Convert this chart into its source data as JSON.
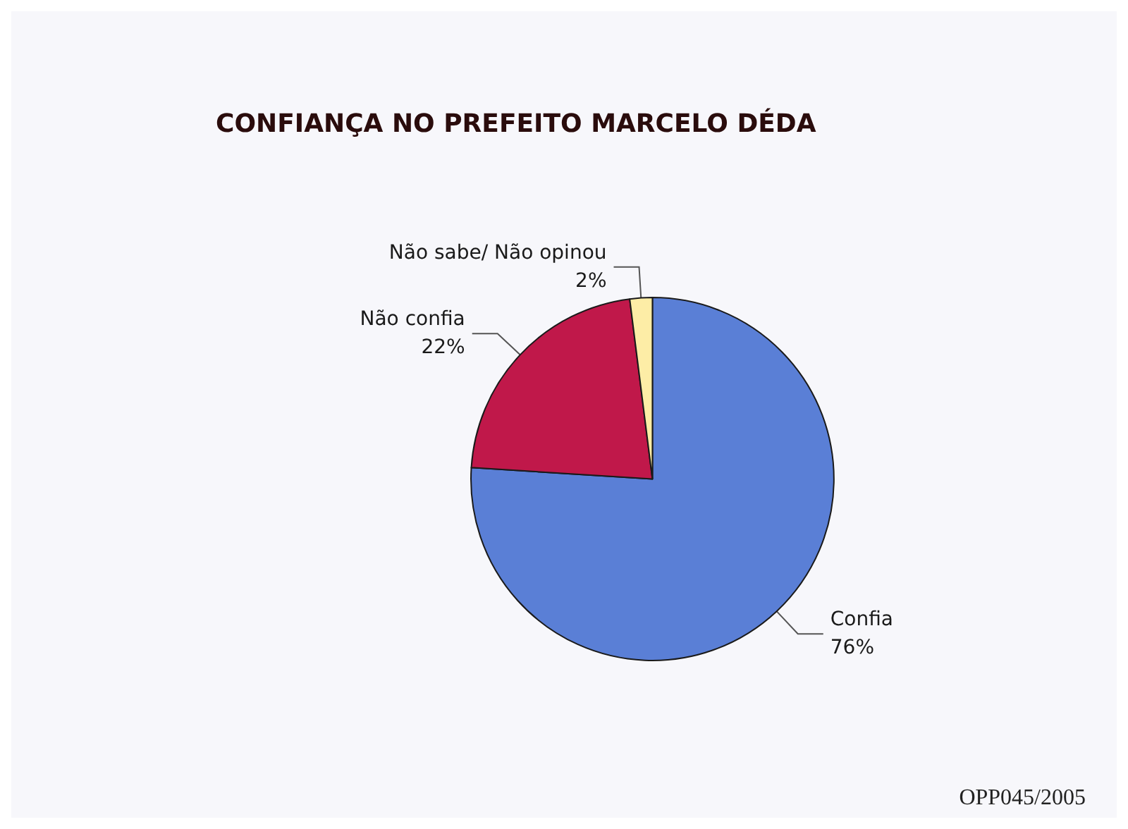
{
  "chart_data": {
    "type": "pie",
    "title": "CONFIANÇA NO PREFEITO MARCELO DÉDA",
    "categories": [
      "Confia",
      "Não confia",
      "Não sabe/ Não opinou"
    ],
    "values": [
      76,
      22,
      2
    ],
    "value_labels": [
      "76%",
      "22%",
      "2%"
    ],
    "colors": [
      "#5a7fd6",
      "#c0184a",
      "#fdeda6"
    ],
    "annotations": [
      "OPP045/2005"
    ]
  }
}
